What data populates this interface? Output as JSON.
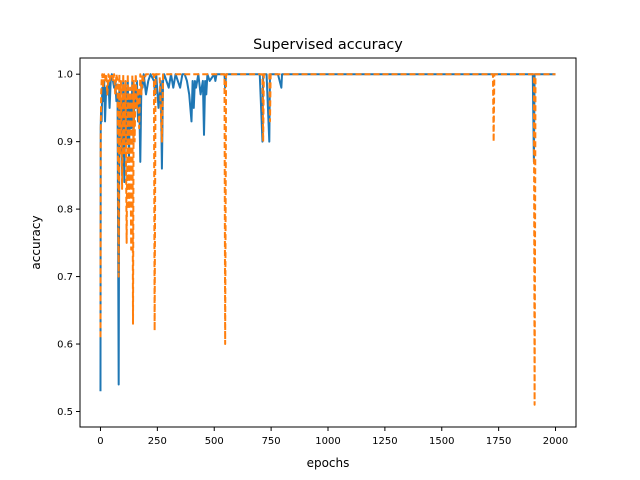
{
  "chart_data": {
    "type": "line",
    "title": "Supervised accuracy",
    "xlabel": "epochs",
    "ylabel": "accuracy",
    "xlim": [
      -90,
      2090
    ],
    "ylim": [
      0.477,
      1.024
    ],
    "xticks": [
      0,
      250,
      500,
      750,
      1000,
      1250,
      1500,
      1750,
      2000
    ],
    "yticks": [
      0.5,
      0.6,
      0.7,
      0.8,
      0.9,
      1.0
    ],
    "xtick_labels": [
      "0",
      "250",
      "500",
      "750",
      "1000",
      "1250",
      "1500",
      "1750",
      "2000"
    ],
    "ytick_labels": [
      "0.5",
      "0.6",
      "0.7",
      "0.8",
      "0.9",
      "1.0"
    ],
    "grid": false,
    "legend": null,
    "series": [
      {
        "color": "#1f77b4",
        "linestyle": "solid",
        "x": [
          0,
          1,
          3,
          5,
          8,
          12,
          16,
          20,
          25,
          30,
          35,
          40,
          45,
          50,
          55,
          60,
          65,
          70,
          75,
          80,
          83,
          86,
          90,
          95,
          100,
          105,
          110,
          115,
          120,
          125,
          130,
          135,
          140,
          145,
          150,
          155,
          160,
          165,
          170,
          175,
          180,
          185,
          190,
          200,
          210,
          220,
          235,
          240,
          245,
          255,
          265,
          270,
          275,
          280,
          290,
          300,
          310,
          320,
          330,
          340,
          350,
          360,
          370,
          380,
          390,
          400,
          405,
          410,
          415,
          420,
          430,
          440,
          450,
          455,
          460,
          465,
          470,
          480,
          500,
          505,
          510,
          530,
          545,
          548,
          552,
          560,
          600,
          650,
          700,
          712,
          715,
          718,
          730,
          742,
          745,
          748,
          760,
          780,
          795,
          798,
          802,
          850,
          1000,
          1200,
          1400,
          1600,
          1725,
          1728,
          1731,
          1800,
          1900,
          1905,
          1908,
          1912,
          1950,
          2000
        ],
        "y": [
          0.53,
          0.92,
          0.95,
          0.93,
          0.98,
          0.96,
          0.99,
          0.93,
          0.98,
          0.97,
          0.99,
          0.95,
          0.99,
          1.0,
          0.99,
          0.98,
          0.99,
          0.96,
          0.97,
          0.54,
          0.98,
          0.9,
          0.96,
          0.85,
          0.99,
          0.84,
          0.98,
          0.9,
          0.99,
          0.87,
          0.97,
          0.92,
          0.99,
          0.9,
          0.98,
          0.95,
          0.99,
          0.93,
          0.97,
          0.87,
          0.99,
          0.98,
          1.0,
          0.97,
          0.99,
          1.0,
          0.99,
          0.97,
          1.0,
          0.95,
          0.99,
          0.86,
          0.99,
          1.0,
          0.99,
          0.98,
          1.0,
          0.98,
          1.0,
          0.99,
          0.98,
          1.0,
          1.0,
          0.99,
          0.97,
          0.93,
          0.99,
          0.95,
          0.99,
          0.98,
          1.0,
          0.97,
          0.99,
          0.91,
          0.99,
          0.97,
          1.0,
          0.99,
          1.0,
          0.99,
          1.0,
          1.0,
          1.0,
          0.98,
          1.0,
          1.0,
          1.0,
          1.0,
          1.0,
          0.9,
          1.0,
          1.0,
          1.0,
          0.9,
          1.0,
          1.0,
          1.0,
          1.0,
          0.98,
          1.0,
          1.0,
          1.0,
          1.0,
          1.0,
          1.0,
          1.0,
          1.0,
          1.0,
          1.0,
          1.0,
          1.0,
          0.87,
          1.0,
          1.0,
          1.0,
          1.0
        ]
      },
      {
        "color": "#ff7f0e",
        "linestyle": "dashed",
        "x": [
          0,
          1,
          3,
          5,
          8,
          12,
          16,
          20,
          25,
          30,
          35,
          40,
          45,
          50,
          55,
          60,
          65,
          70,
          75,
          80,
          83,
          86,
          90,
          95,
          100,
          105,
          110,
          115,
          120,
          125,
          130,
          135,
          140,
          143,
          146,
          150,
          155,
          160,
          165,
          170,
          175,
          180,
          185,
          190,
          200,
          210,
          220,
          230,
          235,
          238,
          242,
          250,
          260,
          270,
          275,
          280,
          290,
          300,
          350,
          400,
          450,
          500,
          540,
          545,
          548,
          552,
          560,
          600,
          650,
          700,
          712,
          715,
          718,
          730,
          742,
          745,
          748,
          760,
          800,
          1000,
          1200,
          1400,
          1600,
          1725,
          1728,
          1731,
          1800,
          1900,
          1905,
          1908,
          1912,
          1950,
          2000
        ],
        "y": [
          0.61,
          0.9,
          0.97,
          0.99,
          1.0,
          0.98,
          1.0,
          0.99,
          1.0,
          0.97,
          1.0,
          0.99,
          1.0,
          1.0,
          0.99,
          1.0,
          0.97,
          1.0,
          0.99,
          0.7,
          1.0,
          0.88,
          0.99,
          0.83,
          1.0,
          0.88,
          0.99,
          0.75,
          1.0,
          0.8,
          0.98,
          0.74,
          1.0,
          0.63,
          0.99,
          0.9,
          1.0,
          0.95,
          0.98,
          0.92,
          1.0,
          0.97,
          1.0,
          0.99,
          1.0,
          1.0,
          1.0,
          1.0,
          1.0,
          0.62,
          1.0,
          1.0,
          1.0,
          0.9,
          1.0,
          1.0,
          1.0,
          1.0,
          1.0,
          1.0,
          1.0,
          1.0,
          1.0,
          1.0,
          0.6,
          1.0,
          1.0,
          1.0,
          1.0,
          1.0,
          1.0,
          0.9,
          1.0,
          1.0,
          1.0,
          0.93,
          1.0,
          1.0,
          1.0,
          1.0,
          1.0,
          1.0,
          1.0,
          1.0,
          0.9,
          1.0,
          1.0,
          1.0,
          1.0,
          0.51,
          1.0,
          1.0,
          1.0
        ]
      }
    ]
  }
}
